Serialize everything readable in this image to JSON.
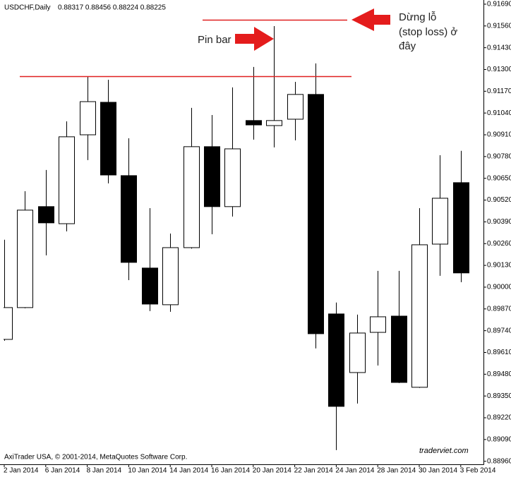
{
  "chart_data": {
    "type": "candlestick",
    "symbol": "USDCHF,Daily",
    "ohlc_label": "0.88317 0.88456 0.88224 0.88225",
    "footer": "AxiTrader USA, © 2001-2014, MetaQuotes Software Corp.",
    "watermark": "traderviet.com",
    "annotations": {
      "pin_bar": "Pin bar",
      "stop_loss": [
        "Dừng lỗ",
        "(stop loss) ở",
        "đây"
      ]
    },
    "categories": [
      "2 Jan 2014",
      null,
      "6 Jan 2014",
      null,
      "8 Jan 2014",
      null,
      "10 Jan 2014",
      null,
      "14 Jan 2014",
      null,
      "16 Jan 2014",
      null,
      "20 Jan 2014",
      null,
      "22 Jan 2014",
      null,
      "24 Jan 2014",
      null,
      "28 Jan 2014",
      null,
      "30 Jan 2014",
      null,
      "3 Feb 2014"
    ],
    "open": [
      0.89688,
      0.89878,
      0.90481,
      0.90379,
      0.9091,
      0.91104,
      0.90666,
      0.90114,
      0.89895,
      0.90236,
      0.90839,
      0.90481,
      0.90995,
      0.90965,
      0.91003,
      0.91151,
      0.8984,
      0.8949,
      0.8973,
      0.89827,
      0.89402,
      0.90257,
      0.90624
    ],
    "high": [
      0.90283,
      0.90573,
      0.907,
      0.9099,
      0.9126,
      0.91239,
      0.90889,
      0.90472,
      0.9032,
      0.91071,
      0.91028,
      0.91193,
      0.91315,
      0.91559,
      0.91226,
      0.91336,
      0.89908,
      0.89836,
      0.90097,
      0.90097,
      0.90472,
      0.90788,
      0.90814
    ],
    "low": [
      0.8968,
      0.89874,
      0.9019,
      0.90333,
      0.90759,
      0.9062,
      0.90042,
      0.89857,
      0.89853,
      0.9023,
      0.90316,
      0.90422,
      0.90881,
      0.90835,
      0.90877,
      0.89634,
      0.89027,
      0.89305,
      0.89532,
      0.89427,
      0.89398,
      0.90068,
      0.9003
    ],
    "close": [
      0.89878,
      0.9046,
      0.90384,
      0.90898,
      0.91108,
      0.9067,
      0.90148,
      0.89899,
      0.90236,
      0.90839,
      0.90481,
      0.90826,
      0.90969,
      0.90995,
      0.91151,
      0.89722,
      0.89288,
      0.89726,
      0.89823,
      0.89431,
      0.90253,
      0.90531,
      0.90085
    ],
    "up_color": "#ffffff",
    "down_color": "#000000",
    "outline_color": "#000000",
    "hlines": [
      {
        "value": 0.9126,
        "color": "#e02020"
      },
      {
        "value": 0.91597,
        "color": "#e02020"
      }
    ],
    "ylim": [
      0.88942,
      0.91715
    ],
    "yticks": [
      {
        "value": 0.9169,
        "label": "0.91690"
      },
      {
        "value": 0.9156,
        "label": "0.91560"
      },
      {
        "value": 0.9143,
        "label": "0.91430"
      },
      {
        "value": 0.913,
        "label": "0.91300"
      },
      {
        "value": 0.9117,
        "label": "0.91170"
      },
      {
        "value": 0.9104,
        "label": "0.91040"
      },
      {
        "value": 0.9091,
        "label": "0.90910"
      },
      {
        "value": 0.9078,
        "label": "0.90780"
      },
      {
        "value": 0.9065,
        "label": "0.90650"
      },
      {
        "value": 0.9052,
        "label": "0.90520"
      },
      {
        "value": 0.9039,
        "label": "0.90390"
      },
      {
        "value": 0.9026,
        "label": "0.90260"
      },
      {
        "value": 0.9013,
        "label": "0.90130"
      },
      {
        "value": 0.9,
        "label": "0.90000"
      },
      {
        "value": 0.8987,
        "label": "0.89870"
      },
      {
        "value": 0.8974,
        "label": "0.89740"
      },
      {
        "value": 0.8961,
        "label": "0.89610"
      },
      {
        "value": 0.8948,
        "label": "0.89480"
      },
      {
        "value": 0.8935,
        "label": "0.89350"
      },
      {
        "value": 0.8922,
        "label": "0.89220"
      },
      {
        "value": 0.8909,
        "label": "0.89090"
      },
      {
        "value": 0.8896,
        "label": "0.88960"
      }
    ],
    "grid": false
  }
}
